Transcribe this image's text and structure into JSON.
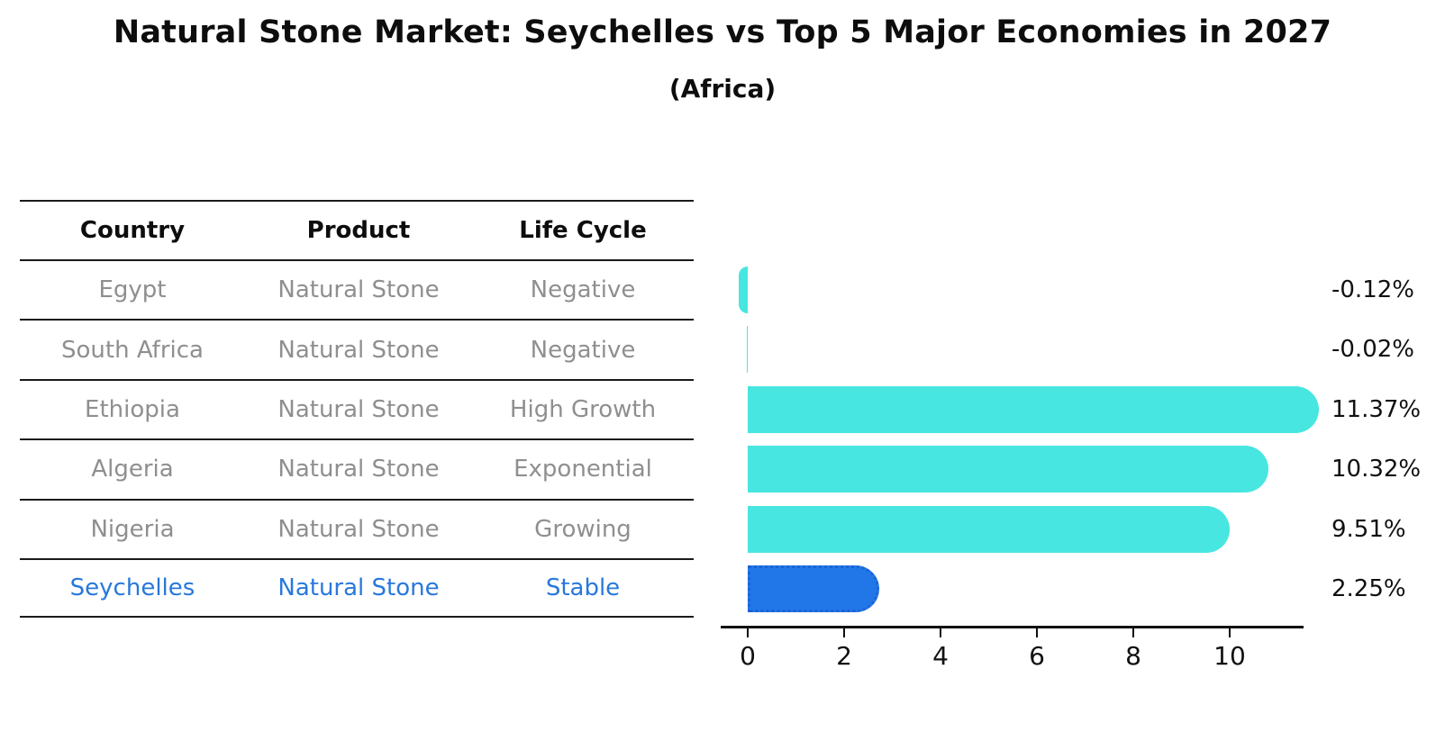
{
  "table": {
    "columns": [
      "Country",
      "Product",
      "Life Cycle"
    ],
    "rows": [
      {
        "country": "Egypt",
        "product": "Natural Stone",
        "life_cycle": "Negative"
      },
      {
        "country": "South Africa",
        "product": "Natural Stone",
        "life_cycle": "Negative"
      },
      {
        "country": "Ethiopia",
        "product": "Natural Stone",
        "life_cycle": "High Growth"
      },
      {
        "country": "Algeria",
        "product": "Natural Stone",
        "life_cycle": "Exponential"
      },
      {
        "country": "Nigeria",
        "product": "Natural Stone",
        "life_cycle": "Growing"
      },
      {
        "country": "Seychelles",
        "product": "Natural Stone",
        "life_cycle": "Stable"
      }
    ],
    "highlighted_row": "Seychelles"
  },
  "chart_data": {
    "type": "bar",
    "orientation": "horizontal",
    "title": "Natural Stone Market: Seychelles vs Top 5 Major Economies in 2027",
    "subtitle": "(Africa)",
    "categories": [
      "Egypt",
      "South Africa",
      "Ethiopia",
      "Algeria",
      "Nigeria",
      "Seychelles"
    ],
    "values": [
      -0.12,
      -0.02,
      11.37,
      10.32,
      9.51,
      2.25
    ],
    "value_labels": [
      "-0.12%",
      "-0.02%",
      "11.37%",
      "10.32%",
      "9.51%",
      "2.25%"
    ],
    "x_ticks": [
      "0",
      "2",
      "4",
      "6",
      "8",
      "10"
    ],
    "xlim": [
      -0.56,
      11.53
    ],
    "xlabel": "",
    "ylabel": "",
    "grid": false,
    "legend": false,
    "highlight_index": 5,
    "colors": {
      "bar": "#47e6e0",
      "highlight_bar": "#2277e8",
      "highlight_border": "#1b63d6",
      "highlight_text": "#2878db",
      "table_text": "#8f8f8f",
      "text": "#111111",
      "background": "#ffffff"
    }
  }
}
